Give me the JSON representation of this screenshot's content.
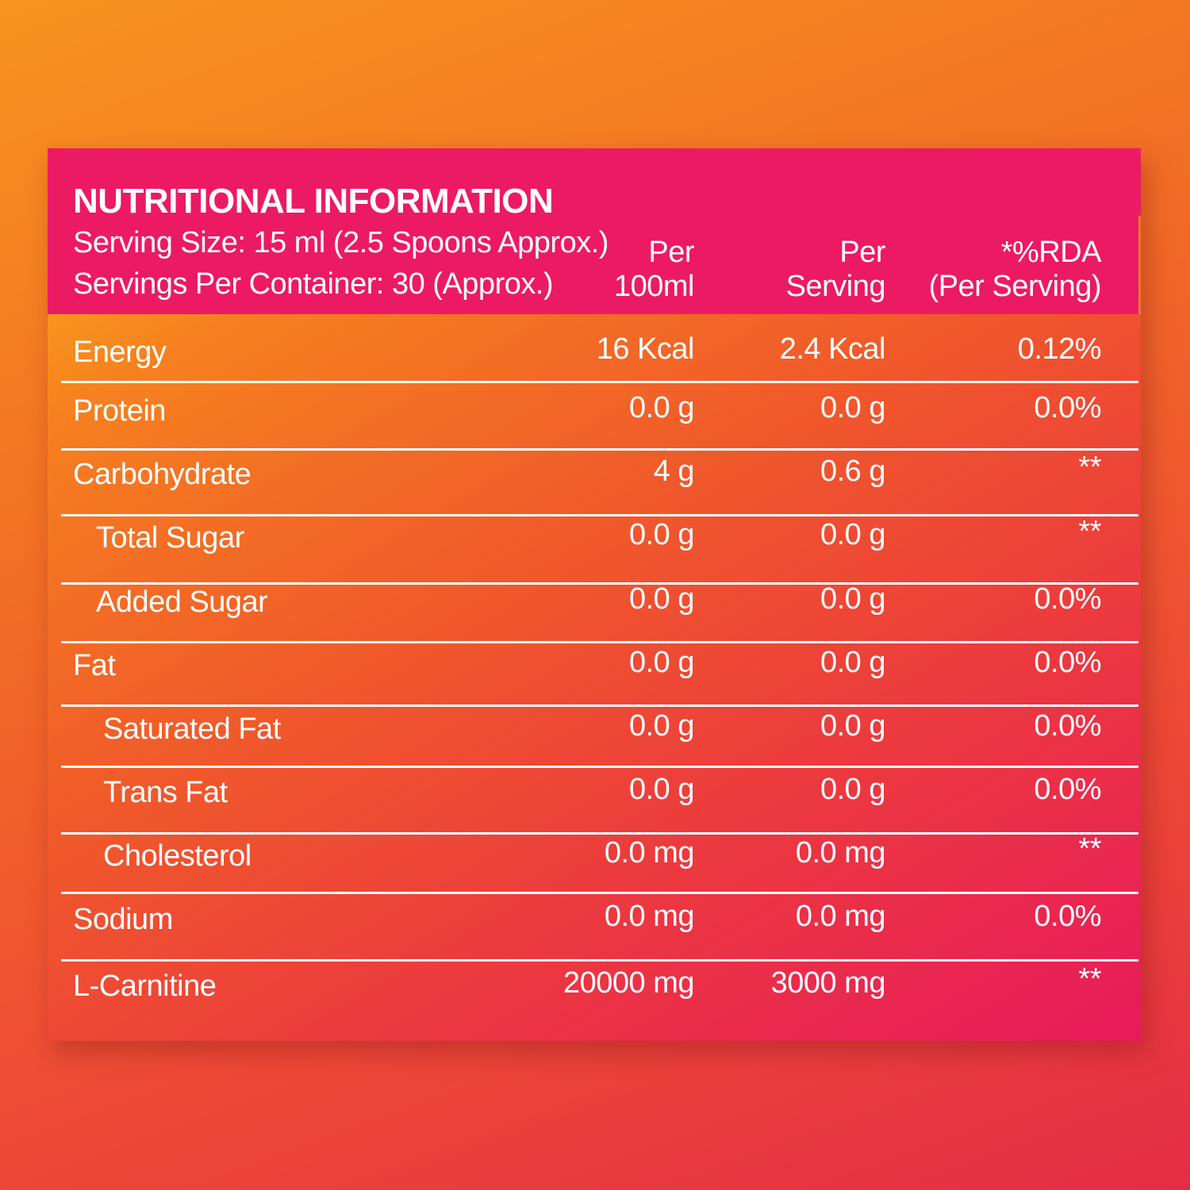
{
  "header": {
    "title": "NUTRITIONAL INFORMATION",
    "serving_size": "Serving Size: 15 ml (2.5 Spoons Approx.)",
    "servings_per_container": "Servings Per Container: 30 (Approx.)",
    "columns": [
      {
        "line1": "Per",
        "line2": "100ml"
      },
      {
        "line1": "Per",
        "line2": "Serving"
      },
      {
        "line1": "*%RDA",
        "line2": "(Per Serving)"
      }
    ]
  },
  "rows": [
    {
      "name": "Energy",
      "per100": "16 Kcal",
      "perServing": "2.4 Kcal",
      "rda": "0.12%"
    },
    {
      "name": "Protein",
      "per100": "0.0 g",
      "perServing": "0.0 g",
      "rda": "0.0%"
    },
    {
      "name": "Carbohydrate",
      "per100": "4 g",
      "perServing": "0.6 g",
      "rda": "**"
    },
    {
      "name": "Total Sugar",
      "per100": "0.0 g",
      "perServing": "0.0 g",
      "rda": "**"
    },
    {
      "name": "Added Sugar",
      "per100": "0.0 g",
      "perServing": "0.0 g",
      "rda": "0.0%"
    },
    {
      "name": "Fat",
      "per100": "0.0 g",
      "perServing": "0.0 g",
      "rda": "0.0%"
    },
    {
      "name": "Saturated Fat",
      "per100": "0.0 g",
      "perServing": "0.0 g",
      "rda": "0.0%"
    },
    {
      "name": "Trans Fat",
      "per100": "0.0 g",
      "perServing": "0.0 g",
      "rda": "0.0%"
    },
    {
      "name": "Cholesterol",
      "per100": "0.0 mg",
      "perServing": "0.0 mg",
      "rda": "**"
    },
    {
      "name": "Sodium",
      "per100": "0.0 mg",
      "perServing": "0.0 mg",
      "rda": "0.0%"
    },
    {
      "name": "L-Carnitine",
      "per100": "20000 mg",
      "perServing": "3000 mg",
      "rda": "**"
    }
  ],
  "colors": {
    "header_pink": "#ec1a63",
    "text": "#ffffff"
  }
}
